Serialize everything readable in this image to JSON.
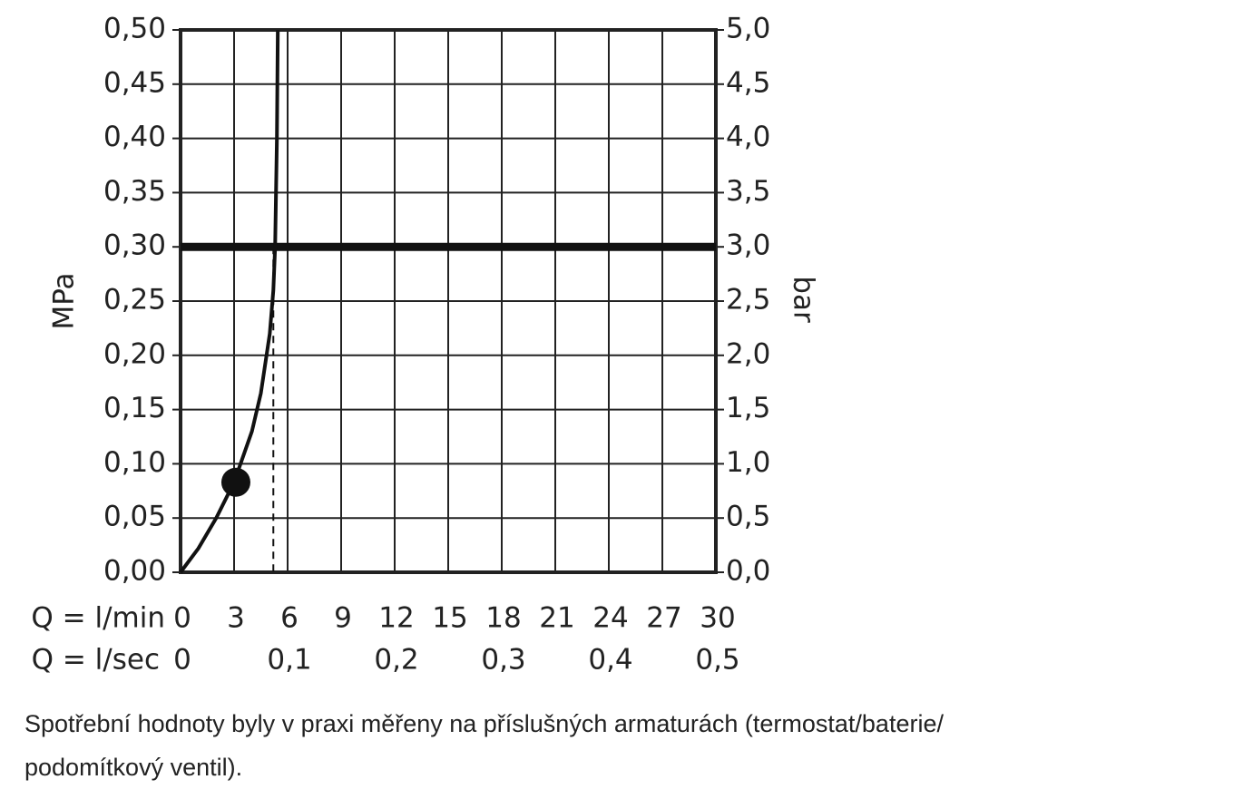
{
  "chart_data": {
    "type": "line",
    "ylabel": "MPa",
    "y2label": "bar",
    "xlabel": "Q = l/min",
    "x2label": "Q = l/sec",
    "xlim": [
      0,
      30
    ],
    "xticks": [
      0,
      3,
      6,
      9,
      12,
      15,
      18,
      21,
      24,
      27,
      30
    ],
    "x2lim": [
      0,
      0.5
    ],
    "x2ticks": [
      0,
      {
        "value": 0.1,
        "label": "0,1"
      },
      {
        "value": 0.2,
        "label": "0,2"
      },
      {
        "value": 0.3,
        "label": "0,3"
      },
      {
        "value": 0.4,
        "label": "0,4"
      },
      {
        "value": 0.5,
        "label": "0,5"
      }
    ],
    "ylim": [
      0,
      0.5
    ],
    "yticks": [
      {
        "value": 0,
        "label": "0,00"
      },
      {
        "value": 0.05,
        "label": "0,05"
      },
      {
        "value": 0.1,
        "label": "0,10"
      },
      {
        "value": 0.15,
        "label": "0,15"
      },
      {
        "value": 0.2,
        "label": "0,20"
      },
      {
        "value": 0.25,
        "label": "0,25"
      },
      {
        "value": 0.3,
        "label": "0,30"
      },
      {
        "value": 0.35,
        "label": "0,35"
      },
      {
        "value": 0.4,
        "label": "0,40"
      },
      {
        "value": 0.45,
        "label": "0,45"
      },
      {
        "value": 0.5,
        "label": "0,50"
      }
    ],
    "y2lim": [
      0,
      5
    ],
    "y2ticks": [
      {
        "value": 0,
        "label": "0,0"
      },
      {
        "value": 0.5,
        "label": "0,5"
      },
      {
        "value": 1,
        "label": "1,0"
      },
      {
        "value": 1.5,
        "label": "1,5"
      },
      {
        "value": 2,
        "label": "2,0"
      },
      {
        "value": 2.5,
        "label": "2,5"
      },
      {
        "value": 3,
        "label": "3,0"
      },
      {
        "value": 3.5,
        "label": "3,5"
      },
      {
        "value": 4,
        "label": "4,0"
      },
      {
        "value": 4.5,
        "label": "4,5"
      },
      {
        "value": 5,
        "label": "5,0"
      }
    ],
    "grid": true,
    "color": "#111111",
    "curve": {
      "x": [
        0,
        1,
        2,
        3,
        4,
        4.5,
        5,
        5.2,
        5.3,
        5.4,
        5.45
      ],
      "values": [
        0,
        0.022,
        0.05,
        0.083,
        0.13,
        0.165,
        0.22,
        0.26,
        0.3,
        0.4,
        0.5
      ]
    },
    "point": {
      "x": 3.1,
      "value": 0.083
    },
    "hline": 0.3,
    "vline": 5.2,
    "caption": [
      "Spotřební hodnoty byly v praxi měřeny na příslušných armaturách (termostat/baterie/",
      "podomítkový ventil)."
    ]
  }
}
